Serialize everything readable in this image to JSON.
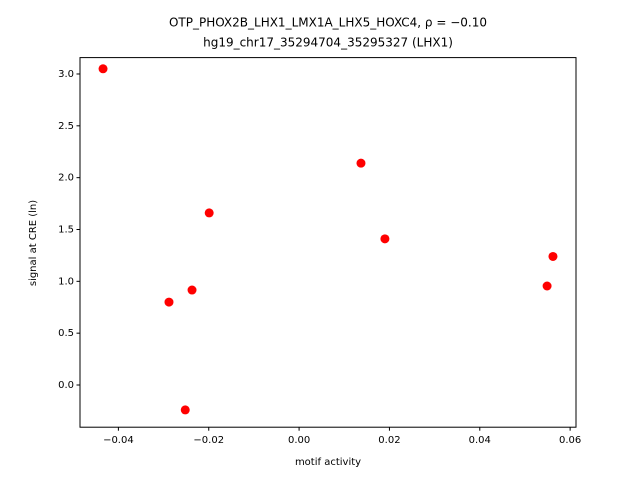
{
  "chart_data": {
    "type": "scatter",
    "title": "OTP_PHOX2B_LHX1_LMX1A_LHX5_HOXC4, ρ = −0.10",
    "subtitle": "hg19_chr17_35294704_35295327 (LHX1)",
    "x_label": "motif activity",
    "y_label": "signal at CRE (ln)",
    "color": "#ff0000",
    "x": [
      -0.0434,
      0.0137,
      -0.0199,
      0.019,
      0.0562,
      0.0549,
      -0.0237,
      -0.0288,
      -0.0252
    ],
    "values": [
      3.05,
      2.14,
      1.66,
      1.41,
      1.24,
      0.955,
      0.916,
      0.8,
      -0.24
    ],
    "xlim": [
      -0.0485,
      0.0613
    ],
    "ylim": [
      -0.407,
      3.158
    ],
    "xticks": [
      {
        "value": -0.04,
        "label": "−0.04"
      },
      {
        "value": -0.02,
        "label": "−0.02"
      },
      {
        "value": 0,
        "label": "0.00"
      },
      {
        "value": 0.02,
        "label": "0.02"
      },
      {
        "value": 0.04,
        "label": "0.04"
      },
      {
        "value": 0.06,
        "label": "0.06"
      }
    ],
    "yticks": [
      {
        "value": 0,
        "label": "0.0"
      },
      {
        "value": 0.5,
        "label": "0.5"
      },
      {
        "value": 1,
        "label": "1.0"
      },
      {
        "value": 1.5,
        "label": "1.5"
      },
      {
        "value": 2,
        "label": "2.0"
      },
      {
        "value": 2.5,
        "label": "2.5"
      },
      {
        "value": 3,
        "label": "3.0"
      }
    ]
  }
}
